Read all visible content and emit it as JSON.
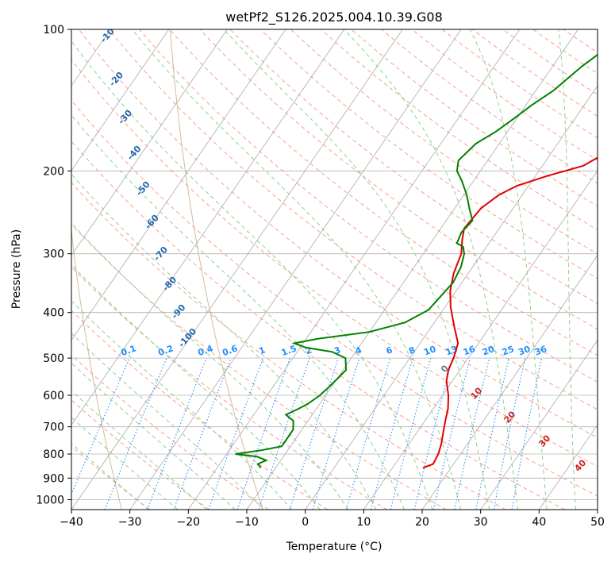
{
  "chart_data": {
    "type": "line",
    "title": "wetPf2_S126.2025.004.10.39.G08",
    "xlabel": "Temperature (°C)",
    "ylabel": "Pressure (hPa)",
    "xlim": [
      -40,
      50
    ],
    "ylim": [
      1050,
      100
    ],
    "y_scale": "log",
    "grid": true,
    "x_ticks": [
      -40,
      -30,
      -20,
      -10,
      0,
      10,
      20,
      30,
      40,
      50
    ],
    "x_tick_labels": [
      "−40",
      "−30",
      "−20",
      "−10",
      "0",
      "10",
      "20",
      "30",
      "40",
      "50"
    ],
    "y_ticks": [
      100,
      200,
      300,
      400,
      500,
      600,
      700,
      800,
      900,
      1000
    ],
    "y_tick_labels": [
      "100",
      "200",
      "300",
      "400",
      "500",
      "600",
      "700",
      "800",
      "900",
      "1000"
    ],
    "colors": {
      "temperature": "#e00000",
      "dewpoint": "#008000",
      "isotherm": "#aaaaaa",
      "dry_adiabat": "#f7a08a",
      "moist_adiabat": "#8fcf8f",
      "mixing_ratio": "#1e90ff",
      "dry_label": "#cc2222",
      "moist_label": "#2166ac",
      "curved": "#d9b99b"
    },
    "series": [
      {
        "key": "temperature",
        "points": [
          [
            15.2,
            856
          ],
          [
            16.5,
            840
          ],
          [
            16.2,
            800
          ],
          [
            15.5,
            760
          ],
          [
            14.5,
            720
          ],
          [
            13.5,
            680
          ],
          [
            12.5,
            640
          ],
          [
            11,
            600
          ],
          [
            9,
            560
          ],
          [
            8,
            530
          ],
          [
            7.5,
            500
          ],
          [
            6.5,
            465
          ],
          [
            4,
            430
          ],
          [
            1,
            390
          ],
          [
            -1,
            360
          ],
          [
            -2.5,
            330
          ],
          [
            -3.5,
            300
          ],
          [
            -5,
            280
          ],
          [
            -6,
            265
          ],
          [
            -5.5,
            240
          ],
          [
            -4,
            225
          ],
          [
            -2,
            215
          ],
          [
            2,
            205
          ],
          [
            7,
            195
          ],
          [
            10,
            180
          ],
          [
            13.5,
            160
          ],
          [
            17,
            140
          ],
          [
            20.5,
            125
          ],
          [
            24,
            112
          ],
          [
            26,
            105
          ],
          [
            28,
            100
          ]
        ]
      },
      {
        "key": "dewpoint",
        "points": [
          [
            -12.5,
            856
          ],
          [
            -13.5,
            840
          ],
          [
            -12.5,
            825
          ],
          [
            -14.5,
            810
          ],
          [
            -18.5,
            800
          ],
          [
            -14.5,
            785
          ],
          [
            -11.5,
            770
          ],
          [
            -11.5,
            740
          ],
          [
            -11.5,
            710
          ],
          [
            -12.5,
            680
          ],
          [
            -14.5,
            660
          ],
          [
            -13,
            640
          ],
          [
            -12,
            625
          ],
          [
            -11,
            600
          ],
          [
            -10.5,
            580
          ],
          [
            -10,
            555
          ],
          [
            -9.5,
            530
          ],
          [
            -11,
            500
          ],
          [
            -14,
            485
          ],
          [
            -19,
            475
          ],
          [
            -21.5,
            465
          ],
          [
            -18,
            455
          ],
          [
            -10,
            440
          ],
          [
            -5,
            420
          ],
          [
            -2.5,
            395
          ],
          [
            -2,
            370
          ],
          [
            -1.5,
            345
          ],
          [
            -2,
            320
          ],
          [
            -3,
            300
          ],
          [
            -4,
            290
          ],
          [
            -5.5,
            285
          ],
          [
            -6,
            270
          ],
          [
            -5.5,
            255
          ],
          [
            -7.5,
            240
          ],
          [
            -9.5,
            225
          ],
          [
            -12,
            210
          ],
          [
            -14,
            200
          ],
          [
            -15,
            190
          ],
          [
            -14,
            175
          ],
          [
            -12,
            165
          ],
          [
            -10.5,
            155
          ],
          [
            -9,
            145
          ],
          [
            -7,
            135
          ],
          [
            -5,
            120
          ],
          [
            -3,
            110
          ],
          [
            -1,
            100
          ]
        ]
      }
    ],
    "dry_adiabat_labels": [
      "10",
      "20",
      "30",
      "40"
    ],
    "moist_adiabat_labels": [
      "0",
      "-10",
      "-20",
      "-30",
      "-40",
      "-50",
      "-60",
      "-70",
      "-80",
      "-90",
      "-100"
    ],
    "mixing_ratio_labels": [
      "0.1",
      "0.2",
      "0.4",
      "0.6",
      "1",
      "1.5",
      "2",
      "3",
      "4",
      "6",
      "8",
      "10",
      "13",
      "16",
      "20",
      "25",
      "30",
      "36"
    ],
    "mixing_ratio_values": [
      0.1,
      0.2,
      0.4,
      0.6,
      1,
      1.5,
      2,
      3,
      4,
      6,
      8,
      10,
      13,
      16,
      20,
      25,
      30,
      36
    ],
    "zero_moist_label": "0"
  }
}
